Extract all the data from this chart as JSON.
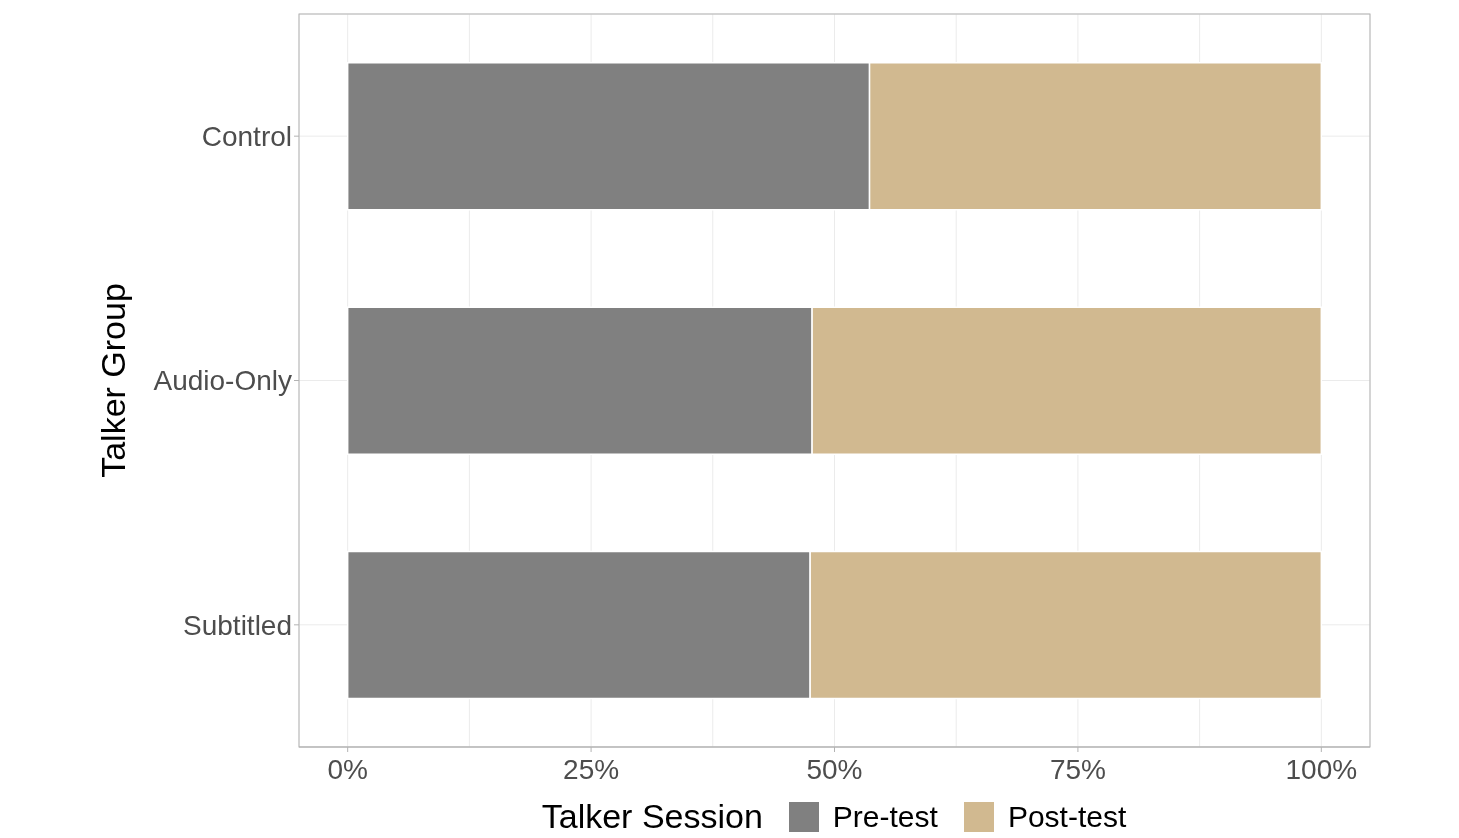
{
  "chart_data": {
    "type": "bar",
    "orientation": "horizontal",
    "stacked": true,
    "ylabel": "Talker Group",
    "legend_title": "Talker Session",
    "categories": [
      "Control",
      "Audio-Only",
      "Subtitled"
    ],
    "series": [
      {
        "name": "Pre-test",
        "color": "#808080",
        "values": [
          53.6,
          47.7,
          47.5
        ]
      },
      {
        "name": "Post-test",
        "color": "#d1b990",
        "values": [
          46.4,
          52.3,
          52.5
        ]
      }
    ],
    "xlim": [
      -5,
      105
    ],
    "xticks": [
      {
        "value": 0,
        "label": "0%"
      },
      {
        "value": 12.5,
        "label": null
      },
      {
        "value": 25,
        "label": "25%"
      },
      {
        "value": 37.5,
        "label": null
      },
      {
        "value": 50,
        "label": "50%"
      },
      {
        "value": 62.5,
        "label": null
      },
      {
        "value": 75,
        "label": "75%"
      },
      {
        "value": 87.5,
        "label": null
      },
      {
        "value": 100,
        "label": "100%"
      }
    ],
    "grid": true,
    "legend": "bottom"
  }
}
